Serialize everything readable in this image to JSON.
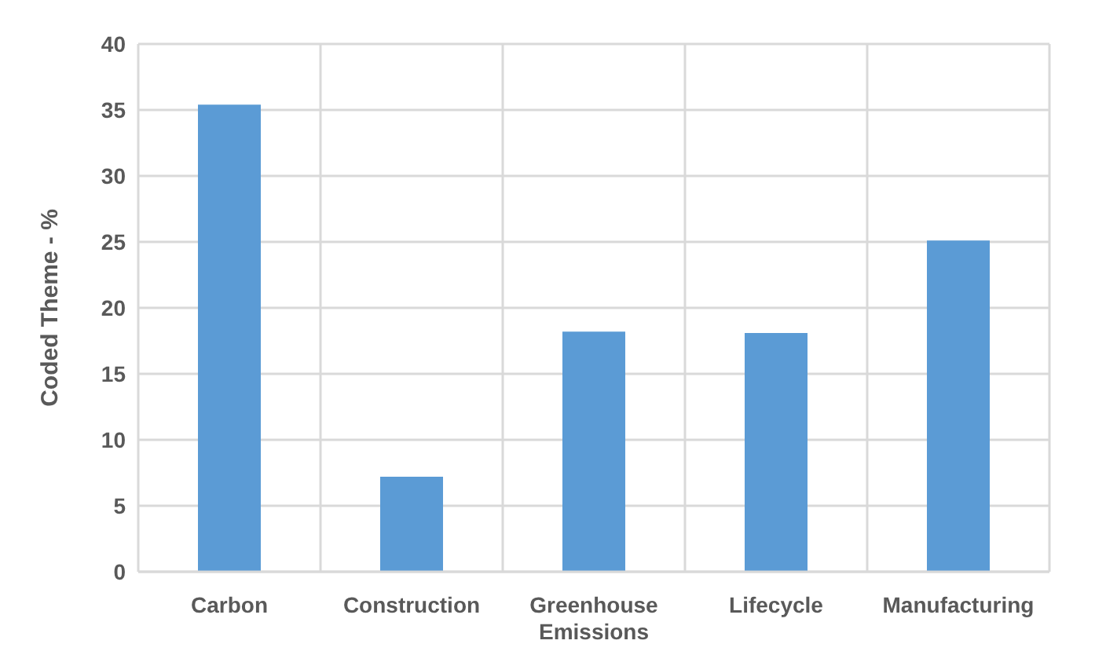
{
  "chart_data": {
    "type": "bar",
    "ylabel": "Coded Theme - %",
    "categories": [
      "Carbon",
      "Construction",
      "Greenhouse Emissions",
      "Lifecycle",
      "Manufacturing"
    ],
    "values": [
      35.4,
      7.2,
      18.2,
      18.1,
      25.1
    ],
    "color": "#5b9bd5",
    "ylim": [
      0,
      40
    ],
    "yticks": [
      0,
      5,
      10,
      15,
      20,
      25,
      30,
      35,
      40
    ],
    "grid": true
  }
}
